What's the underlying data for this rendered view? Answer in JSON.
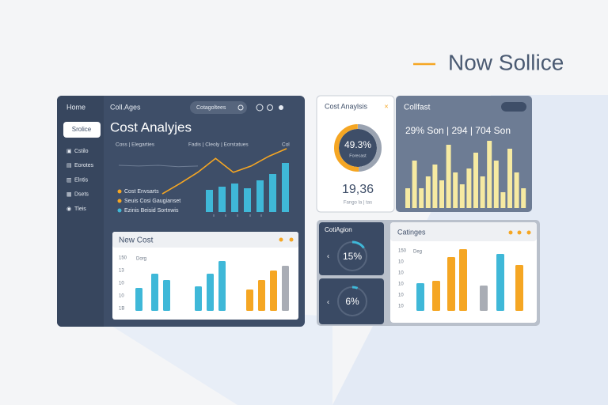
{
  "brand": {
    "title": "Now Sollice"
  },
  "sidebar": {
    "header": "Home",
    "button": "Srolice",
    "items": [
      "Cstilo",
      "Eorotes",
      "Elntis",
      "Dsets",
      "Tleis"
    ]
  },
  "main": {
    "tab": "Coll.Ages",
    "search": "Cotagoltees",
    "title": "Cost Analyjes",
    "filters": [
      "Coss | Elegarties",
      "Fadis | Cleoly | Eorstatues",
      "Col"
    ],
    "line": [
      26,
      41,
      57,
      77,
      57,
      66,
      80,
      91
    ],
    "baseline": [
      67,
      66,
      67,
      65,
      66
    ],
    "bars": [
      28,
      32,
      36,
      30,
      40,
      48,
      62
    ],
    "legend": [
      "Cost Envsarts",
      "Seuis Cosi Gaugianset",
      "Ezinis Beisid Sortnwis"
    ]
  },
  "new_cost": {
    "title": "New Cost",
    "legend": "Dorg",
    "yticks": [
      "150",
      "13",
      "10",
      "10",
      "1B"
    ],
    "bars": [
      29,
      47,
      39,
      31,
      47,
      63,
      27,
      39,
      51,
      57
    ],
    "colors": [
      "#3fb8d8",
      "#3fb8d8",
      "#3fb8d8",
      "#3fb8d8",
      "#3fb8d8",
      "#3fb8d8",
      "#f5a623",
      "#f5a623",
      "#f5a623",
      "#a9adb5"
    ]
  },
  "analysis": {
    "title": "Cost Anaylsis",
    "percent": "49.3%",
    "value": 49.3,
    "caption": "Forecast",
    "total": "19,36",
    "sub": "Fango la | tas"
  },
  "collfast": {
    "title": "Collfast",
    "stats": "29%  Son   |  294  |  704  Son",
    "bars": [
      25,
      60,
      25,
      40,
      55,
      35,
      80,
      45,
      30,
      50,
      70,
      40,
      85,
      60,
      20,
      75,
      45,
      25
    ]
  },
  "gauges": {
    "title": "CotiAgion",
    "items": [
      {
        "label": "15%",
        "value": 15
      },
      {
        "label": "6%",
        "value": 6
      }
    ]
  },
  "ratings": {
    "title": "Catinges",
    "legend": "Deg",
    "yticks": [
      "150",
      "10",
      "10",
      "10",
      "10",
      "10"
    ],
    "bars": [
      35,
      38,
      68,
      78,
      32,
      72,
      58
    ],
    "colors": [
      "#3fb8d8",
      "#f5a623",
      "#f5a623",
      "#f5a623",
      "#a9adb5",
      "#3fb8d8",
      "#f5a623"
    ]
  }
}
